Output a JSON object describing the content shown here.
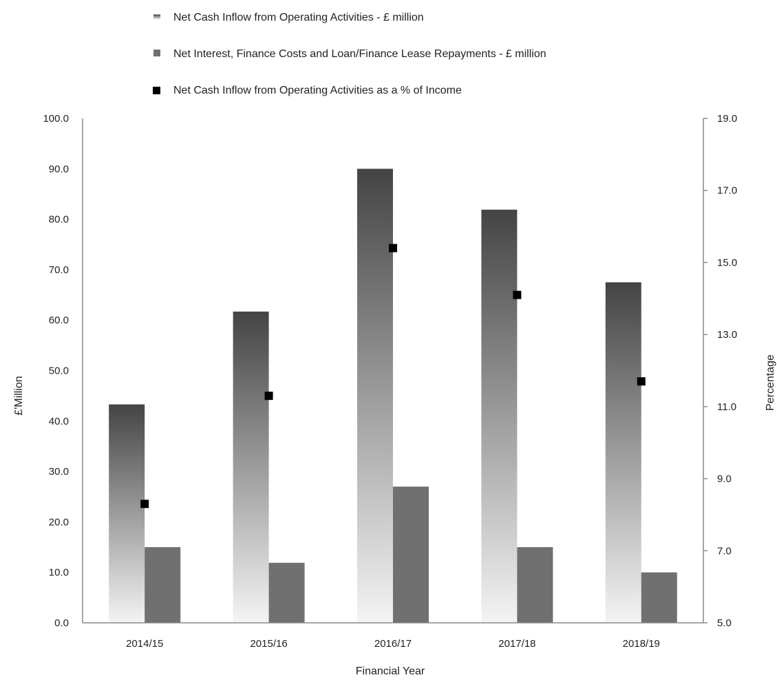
{
  "chart_data": {
    "type": "bar",
    "categories": [
      "2014/15",
      "2015/16",
      "2016/17",
      "2017/18",
      "2018/19"
    ],
    "series": [
      {
        "name": "Net Cash Inflow from Operating Activities - £ million",
        "kind": "bar",
        "axis": "left",
        "fill": "gradient",
        "color_top": "#444444",
        "color_bottom": "#f4f4f4",
        "values": [
          43.3,
          61.7,
          90.0,
          81.9,
          67.5
        ]
      },
      {
        "name": "Net Interest, Finance Costs and Loan/Finance Lease Repayments - £ million",
        "kind": "bar",
        "axis": "left",
        "color": "#707070",
        "values": [
          15.0,
          11.9,
          27.0,
          15.0,
          10.0
        ]
      },
      {
        "name": "Net Cash Inflow from Operating Activities as a % of Income",
        "kind": "marker",
        "axis": "right",
        "color": "#000000",
        "values": [
          8.3,
          11.3,
          15.4,
          14.1,
          11.7
        ]
      }
    ],
    "xlabel": "Financial Year",
    "ylabel": "£'Million",
    "y2label": "Percentage",
    "ylim": [
      0,
      100
    ],
    "y2lim": [
      5,
      19
    ],
    "yticks": [
      "0.0",
      "10.0",
      "20.0",
      "30.0",
      "40.0",
      "50.0",
      "60.0",
      "70.0",
      "80.0",
      "90.0",
      "100.0"
    ],
    "y2ticks": [
      "5.0",
      "7.0",
      "9.0",
      "11.0",
      "13.0",
      "15.0",
      "17.0",
      "19.0"
    ],
    "grid": false,
    "legend_position": "top"
  }
}
